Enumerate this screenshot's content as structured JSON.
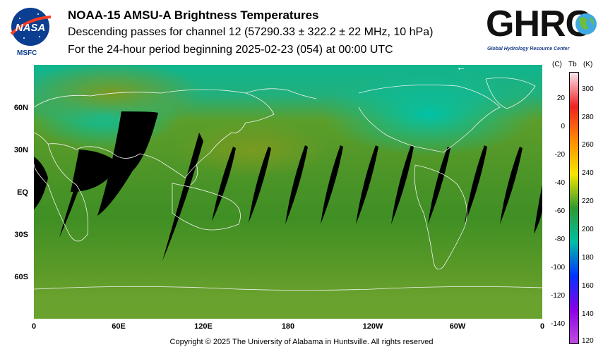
{
  "header": {
    "title": "NOAA-15 AMSU-A Brightness Temperatures",
    "line2": "Descending passes for channel 12 (57290.33 ± 322.2 ± 22 MHz, 10 hPa)",
    "line3": "For the 24-hour period beginning 2025-02-23 (054) at 00:00 UTC"
  },
  "logos": {
    "nasa_text": "NASA",
    "msfc": "MSFC",
    "ghrc_text": "GHRC",
    "ghrc_caption": "Global Hydrology Resource Center"
  },
  "map": {
    "lat_labels": [
      "60N",
      "30N",
      "EQ",
      "30S",
      "60S"
    ],
    "lon_labels": [
      "0",
      "60E",
      "120E",
      "180",
      "120W",
      "60W",
      "0"
    ]
  },
  "colorbar": {
    "unit_c": "(C)",
    "unit_tb": "Tb",
    "unit_k": "(K)",
    "celsius_ticks": [
      "20",
      "0",
      "-20",
      "-40",
      "-60",
      "-80",
      "-100",
      "-120",
      "-140"
    ],
    "kelvin_ticks": [
      "300",
      "280",
      "260",
      "240",
      "220",
      "200",
      "180",
      "160",
      "140",
      "120"
    ],
    "colors": {
      "top": "#fbe6ef",
      "red": "#ee2222",
      "orange": "#ff8c00",
      "yellow": "#f5e600",
      "green": "#2f9b2f",
      "teal": "#00bfa5",
      "blue": "#0033ff",
      "purple": "#8a00e6",
      "bottom": "#c04de0"
    }
  },
  "footer": {
    "copyright": "Copyright © 2025 The University of Alabama in Huntsville.  All rights reserved"
  }
}
